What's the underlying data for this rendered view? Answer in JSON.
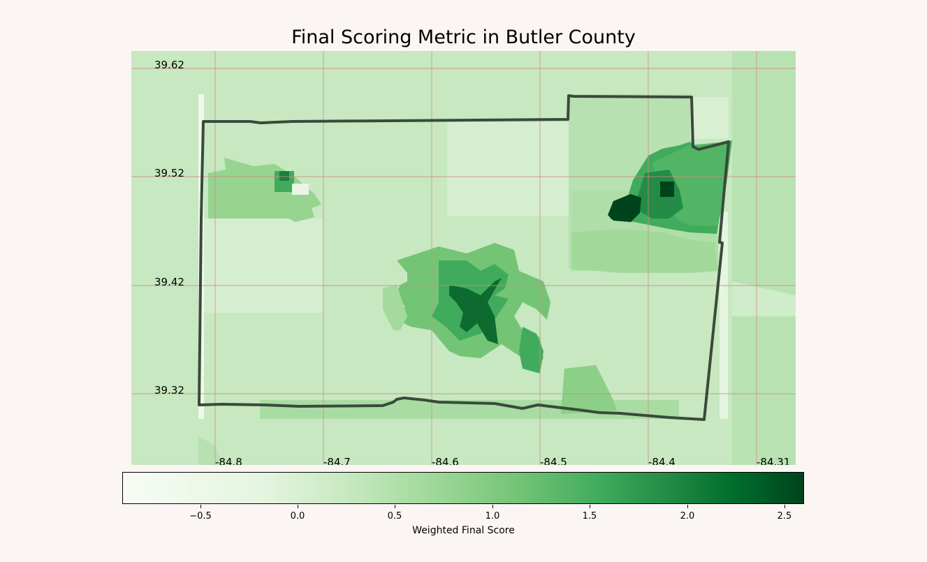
{
  "title": "Final Scoring Metric in Butler County",
  "map": {
    "lat_labels": [
      "39.62",
      "39.52",
      "39.42",
      "39.32"
    ],
    "lon_labels": [
      "-84.8",
      "-84.7",
      "-84.6",
      "-84.5",
      "-84.4",
      "-84.31"
    ],
    "colormap": "Greens",
    "boundary_color": "#3a4a3c"
  },
  "colorbar": {
    "label": "Weighted Final Score",
    "min": -0.9,
    "max": 2.6,
    "ticks": [
      "−0.5",
      "0.0",
      "0.5",
      "1.0",
      "1.5",
      "2.0",
      "2.5"
    ],
    "tick_values": [
      -0.5,
      0.0,
      0.5,
      1.0,
      1.5,
      2.0,
      2.5
    ]
  }
}
